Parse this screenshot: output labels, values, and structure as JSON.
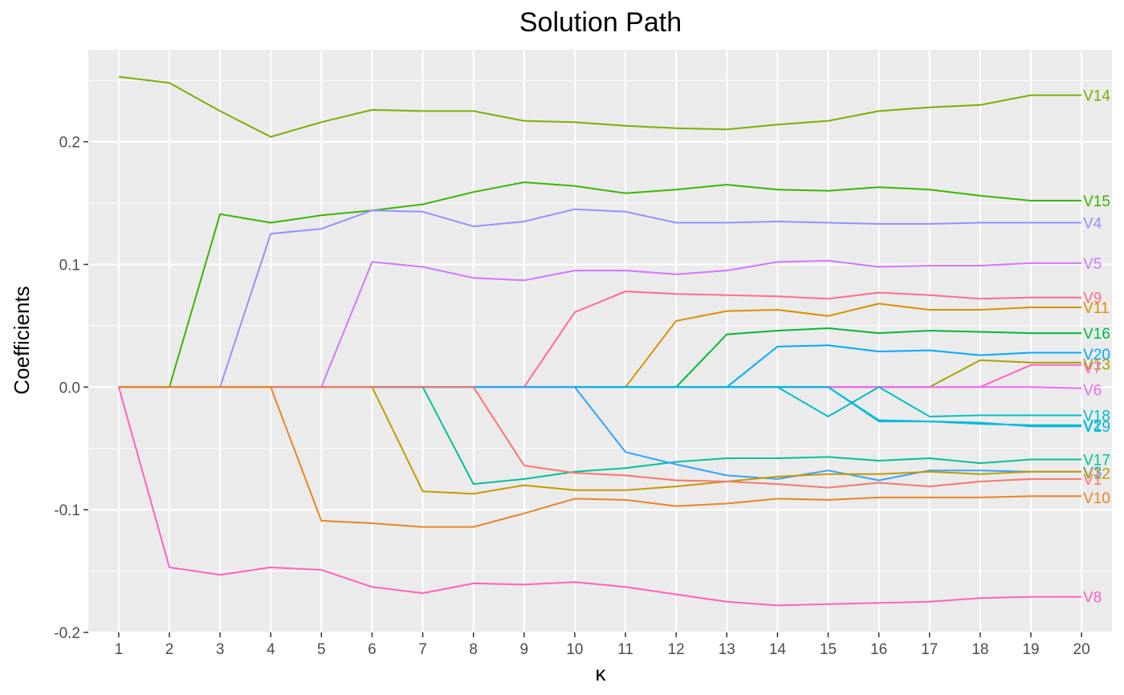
{
  "chart_data": {
    "type": "line",
    "title": "Solution Path",
    "xlabel": "κ",
    "ylabel": "Coefficients",
    "xlim": [
      0.4,
      20.6
    ],
    "ylim": [
      -0.2,
      0.275
    ],
    "xticks": [
      1,
      2,
      3,
      4,
      5,
      6,
      7,
      8,
      9,
      10,
      11,
      12,
      13,
      14,
      15,
      16,
      17,
      18,
      19,
      20
    ],
    "xtick_labels": [
      "1",
      "2",
      "3",
      "4",
      "5",
      "6",
      "7",
      "8",
      "9",
      "10",
      "11",
      "12",
      "13",
      "14",
      "15",
      "16",
      "17",
      "18",
      "19",
      "20"
    ],
    "yticks": [
      -0.2,
      -0.1,
      0.0,
      0.1,
      0.2
    ],
    "ytick_labels": [
      "-0.2",
      "-0.1",
      "0.0",
      "0.1",
      "0.2"
    ],
    "panel_background": "#ebebeb",
    "grid": true,
    "x": [
      1,
      2,
      3,
      4,
      5,
      6,
      7,
      8,
      9,
      10,
      11,
      12,
      13,
      14,
      15,
      16,
      17,
      18,
      19,
      20
    ],
    "series": [
      {
        "name": "V14",
        "color": "#7CAE00",
        "values": [
          0.253,
          0.248,
          0.225,
          0.204,
          0.216,
          0.226,
          0.225,
          0.225,
          0.217,
          0.216,
          0.213,
          0.211,
          0.21,
          0.214,
          0.217,
          0.225,
          0.228,
          0.23,
          0.238,
          0.238
        ]
      },
      {
        "name": "V15",
        "color": "#39B600",
        "values": [
          0,
          0,
          0.141,
          0.134,
          0.14,
          0.144,
          0.149,
          0.159,
          0.167,
          0.164,
          0.158,
          0.161,
          0.165,
          0.161,
          0.16,
          0.163,
          0.161,
          0.156,
          0.152,
          0.152
        ]
      },
      {
        "name": "V4",
        "color": "#9590FF",
        "values": [
          0,
          0,
          0,
          0.125,
          0.129,
          0.144,
          0.143,
          0.131,
          0.135,
          0.145,
          0.143,
          0.134,
          0.134,
          0.135,
          0.134,
          0.133,
          0.133,
          0.134,
          0.134,
          0.134
        ]
      },
      {
        "name": "V5",
        "color": "#D376FF",
        "values": [
          0,
          0,
          0,
          0,
          0,
          0.102,
          0.098,
          0.089,
          0.087,
          0.095,
          0.095,
          0.092,
          0.095,
          0.102,
          0.103,
          0.098,
          0.099,
          0.099,
          0.101,
          0.101
        ]
      },
      {
        "name": "V9",
        "color": "#FF6C91",
        "values": [
          0,
          0,
          0,
          0,
          0,
          0,
          0,
          0,
          0,
          0.061,
          0.078,
          0.076,
          0.075,
          0.074,
          0.072,
          0.077,
          0.075,
          0.072,
          0.073,
          0.073
        ]
      },
      {
        "name": "V11",
        "color": "#D89000",
        "values": [
          0,
          0,
          0,
          0,
          0,
          0,
          0,
          0,
          0,
          0,
          0,
          0.054,
          0.062,
          0.063,
          0.058,
          0.068,
          0.063,
          0.063,
          0.065,
          0.065
        ]
      },
      {
        "name": "V16",
        "color": "#00BA38",
        "values": [
          0,
          0,
          0,
          0,
          0,
          0,
          0,
          0,
          0,
          0,
          0,
          0,
          0.043,
          0.046,
          0.048,
          0.044,
          0.046,
          0.045,
          0.044,
          0.044
        ]
      },
      {
        "name": "V20",
        "color": "#00A9FF",
        "values": [
          0,
          0,
          0,
          0,
          0,
          0,
          0,
          0,
          0,
          0,
          0,
          0,
          0,
          0.033,
          0.034,
          0.029,
          0.03,
          0.026,
          0.028,
          0.028
        ]
      },
      {
        "name": "V13",
        "color": "#A3A500",
        "values": [
          0,
          0,
          0,
          0,
          0,
          0,
          0,
          0,
          0,
          0,
          0,
          0,
          0,
          0,
          0,
          0,
          0,
          0.022,
          0.02,
          0.02
        ]
      },
      {
        "name": "V7",
        "color": "#FF61C3",
        "values": [
          0,
          0,
          0,
          0,
          0,
          0,
          0,
          0,
          0,
          0,
          0,
          0,
          0,
          0,
          0,
          0,
          0,
          0,
          0.018,
          0.018
        ]
      },
      {
        "name": "V6",
        "color": "#E76BF3",
        "values": [
          0,
          0,
          0,
          0,
          0,
          0,
          0,
          0,
          0,
          0,
          0,
          0,
          0,
          0,
          0,
          0,
          0,
          0,
          0,
          -0.001
        ]
      },
      {
        "name": "V18",
        "color": "#00BFC4",
        "values": [
          0,
          0,
          0,
          0,
          0,
          0,
          0,
          0,
          0,
          0,
          0,
          0,
          0,
          0,
          -0.024,
          0,
          -0.024,
          -0.023,
          -0.023,
          -0.023
        ]
      },
      {
        "name": "V2",
        "color": "#00BFC4",
        "values": [
          0,
          0,
          0,
          0,
          0,
          0,
          0,
          0,
          0,
          0,
          0,
          0,
          0,
          0,
          0,
          -0.027,
          -0.028,
          -0.03,
          -0.031,
          -0.031
        ]
      },
      {
        "name": "V19",
        "color": "#00B8E7",
        "values": [
          0,
          0,
          0,
          0,
          0,
          0,
          0,
          0,
          0,
          0,
          0,
          0,
          0,
          0,
          0,
          -0.028,
          -0.028,
          -0.029,
          -0.032,
          -0.032
        ]
      },
      {
        "name": "V17",
        "color": "#00C19A",
        "values": [
          0,
          0,
          0,
          0,
          0,
          0,
          0,
          -0.079,
          -0.075,
          -0.069,
          -0.066,
          -0.061,
          -0.058,
          -0.058,
          -0.057,
          -0.06,
          -0.058,
          -0.062,
          -0.059,
          -0.059
        ]
      },
      {
        "name": "V3",
        "color": "#35A2FF",
        "values": [
          0,
          0,
          0,
          0,
          0,
          0,
          0,
          0,
          0,
          0,
          -0.053,
          -0.063,
          -0.072,
          -0.075,
          -0.068,
          -0.076,
          -0.068,
          -0.068,
          -0.069,
          -0.069
        ]
      },
      {
        "name": "V12",
        "color": "#C49A00",
        "values": [
          0,
          0,
          0,
          0,
          0,
          0,
          -0.085,
          -0.087,
          -0.08,
          -0.084,
          -0.084,
          -0.081,
          -0.077,
          -0.073,
          -0.071,
          -0.071,
          -0.069,
          -0.071,
          -0.069,
          -0.069
        ]
      },
      {
        "name": "V1",
        "color": "#F8766D",
        "values": [
          0,
          0,
          0,
          0,
          0,
          0,
          0,
          0,
          -0.064,
          -0.07,
          -0.072,
          -0.076,
          -0.077,
          -0.079,
          -0.082,
          -0.078,
          -0.081,
          -0.077,
          -0.075,
          -0.075
        ]
      },
      {
        "name": "V10",
        "color": "#E88526",
        "values": [
          0,
          0,
          0,
          0,
          -0.109,
          -0.111,
          -0.114,
          -0.114,
          -0.103,
          -0.091,
          -0.092,
          -0.097,
          -0.095,
          -0.091,
          -0.092,
          -0.09,
          -0.09,
          -0.09,
          -0.089,
          -0.089
        ]
      },
      {
        "name": "V8",
        "color": "#FF62BC",
        "values": [
          0,
          -0.147,
          -0.153,
          -0.147,
          -0.149,
          -0.163,
          -0.168,
          -0.16,
          -0.161,
          -0.159,
          -0.163,
          -0.169,
          -0.175,
          -0.178,
          -0.177,
          -0.176,
          -0.175,
          -0.172,
          -0.171,
          -0.171
        ]
      }
    ],
    "end_labels": [
      {
        "name": "V14",
        "text": "V14",
        "y": 0.238
      },
      {
        "name": "V15",
        "text": "V15",
        "y": 0.152
      },
      {
        "name": "V4",
        "text": "V4",
        "y": 0.134
      },
      {
        "name": "V5",
        "text": "V5",
        "y": 0.101
      },
      {
        "name": "V9",
        "text": "V9",
        "y": 0.073
      },
      {
        "name": "V11",
        "text": "V11",
        "y": 0.065
      },
      {
        "name": "V16",
        "text": "V16",
        "y": 0.044
      },
      {
        "name": "V20",
        "text": "V20",
        "y": 0.027
      },
      {
        "name": "V13",
        "text": "V13",
        "y": 0.019
      },
      {
        "name": "V7",
        "text": "V7",
        "y": 0.016
      },
      {
        "name": "V6",
        "text": "V6",
        "y": -0.002
      },
      {
        "name": "V18",
        "text": "V18",
        "y": -0.023
      },
      {
        "name": "V2",
        "text": "V2",
        "y": -0.031
      },
      {
        "name": "V19",
        "text": "V19",
        "y": -0.032
      },
      {
        "name": "V17",
        "text": "V17",
        "y": -0.059
      },
      {
        "name": "V3",
        "text": "V3",
        "y": -0.069
      },
      {
        "name": "V12",
        "text": "V12",
        "y": -0.07
      },
      {
        "name": "V1",
        "text": "V1",
        "y": -0.075
      },
      {
        "name": "V10",
        "text": "V10",
        "y": -0.09
      },
      {
        "name": "V8",
        "text": "V8",
        "y": -0.171
      }
    ]
  }
}
